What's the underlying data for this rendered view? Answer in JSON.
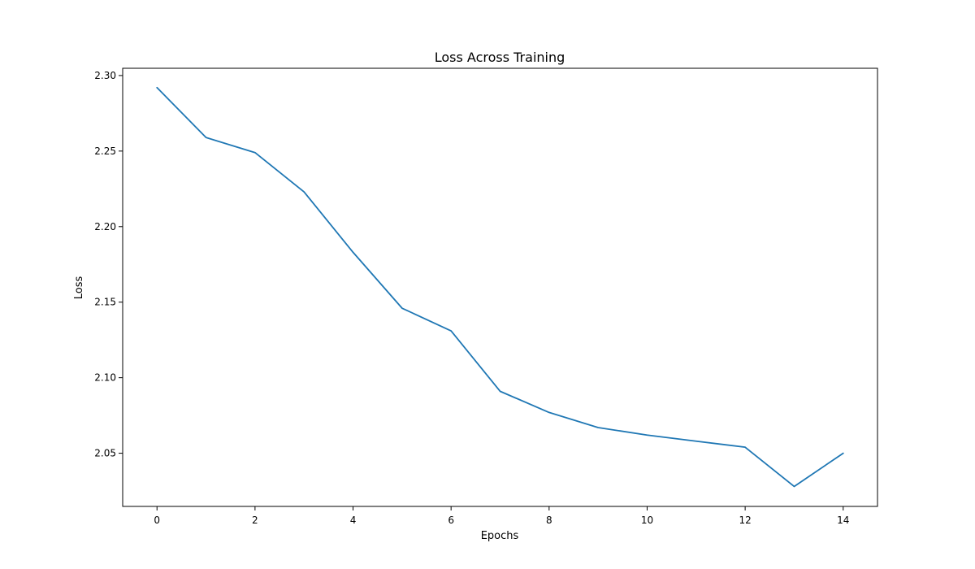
{
  "chart_data": {
    "type": "line",
    "title": "Loss Across Training",
    "xlabel": "Epochs",
    "ylabel": "Loss",
    "x": [
      0,
      1,
      2,
      3,
      4,
      5,
      6,
      7,
      8,
      9,
      10,
      11,
      12,
      13,
      14
    ],
    "series": [
      {
        "values": [
          2.292,
          2.259,
          2.249,
          2.223,
          2.183,
          2.146,
          2.131,
          2.091,
          2.077,
          2.067,
          2.062,
          2.058,
          2.054,
          2.028,
          2.05
        ],
        "color": "#1f77b4"
      }
    ],
    "xlim": [
      -0.7,
      14.7
    ],
    "ylim": [
      2.0148,
      2.3048
    ],
    "xticks": [
      0,
      2,
      4,
      6,
      8,
      10,
      12,
      14
    ],
    "xtick_labels": [
      "0",
      "2",
      "4",
      "6",
      "8",
      "10",
      "12",
      "14"
    ],
    "yticks": [
      2.05,
      2.1,
      2.15,
      2.2,
      2.25,
      2.3
    ],
    "ytick_labels": [
      "2.05",
      "2.10",
      "2.15",
      "2.20",
      "2.25",
      "2.30"
    ],
    "grid": false,
    "legend": false
  }
}
